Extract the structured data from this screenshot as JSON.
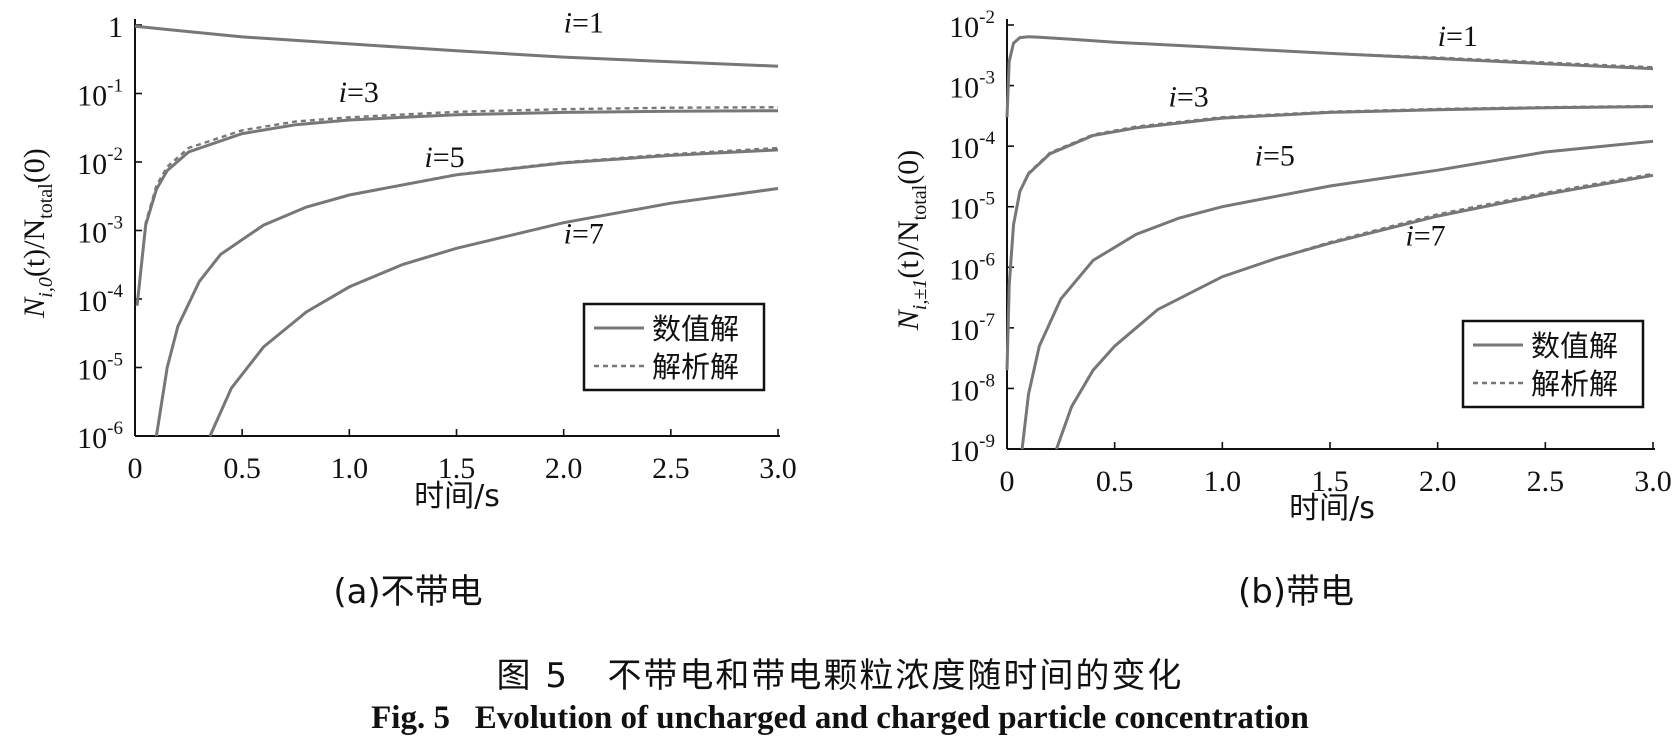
{
  "figure_caption_cn": {
    "label": "图 5",
    "text": "不带电和带电颗粒浓度随时间的变化"
  },
  "figure_caption_en": {
    "label": "Fig. 5",
    "text": "Evolution of uncharged and charged particle concentration"
  },
  "colors": {
    "numerical": "#777777",
    "analytical": "#777777",
    "axis": "#111111"
  },
  "chart_data": [
    {
      "type": "line",
      "panel_caption": "(a)不带电",
      "xlabel": "时间/s",
      "ylabel": {
        "main": "N",
        "sub1": "i,0",
        "mid": "(t)/N",
        "sub2": "total",
        "tail": "(0)"
      },
      "y_scale": "log",
      "xlim": [
        0,
        3.0
      ],
      "ylim": [
        1e-06,
        1
      ],
      "x_ticks": [
        "0",
        "0.5",
        "1.0",
        "1.5",
        "2.0",
        "2.5",
        "3.0"
      ],
      "y_ticks": [
        {
          "base": "1",
          "exp": ""
        },
        {
          "base": "10",
          "exp": "-1"
        },
        {
          "base": "10",
          "exp": "-2"
        },
        {
          "base": "10",
          "exp": "-3"
        },
        {
          "base": "10",
          "exp": "-4"
        },
        {
          "base": "10",
          "exp": "-5"
        },
        {
          "base": "10",
          "exp": "-6"
        }
      ],
      "legend": {
        "position": "bottom-right",
        "entries": [
          "数值解",
          "解析解"
        ]
      },
      "series": [
        {
          "label": "i=1",
          "label_at": [
            2.0,
            0.78
          ],
          "x": [
            0,
            0.25,
            0.5,
            1.0,
            1.5,
            2.0,
            2.5,
            3.0
          ],
          "numerical": [
            0.96,
            0.8,
            0.67,
            0.53,
            0.42,
            0.34,
            0.29,
            0.25
          ],
          "analytical": [
            0.96,
            0.8,
            0.67,
            0.53,
            0.42,
            0.34,
            0.29,
            0.25
          ]
        },
        {
          "label": "i=3",
          "label_at": [
            0.95,
            0.075
          ],
          "x": [
            0.01,
            0.05,
            0.1,
            0.15,
            0.25,
            0.5,
            0.75,
            1.0,
            1.5,
            2.0,
            2.5,
            3.0
          ],
          "numerical": [
            8e-05,
            0.0012,
            0.004,
            0.0075,
            0.014,
            0.026,
            0.035,
            0.041,
            0.049,
            0.053,
            0.055,
            0.056
          ],
          "analytical": [
            8e-05,
            0.0013,
            0.0045,
            0.0085,
            0.016,
            0.029,
            0.039,
            0.045,
            0.054,
            0.059,
            0.062,
            0.063
          ]
        },
        {
          "label": "i=5",
          "label_at": [
            1.35,
            0.0085
          ],
          "x": [
            0.1,
            0.15,
            0.2,
            0.3,
            0.4,
            0.6,
            0.8,
            1.0,
            1.5,
            2.0,
            2.5,
            3.0
          ],
          "numerical": [
            1e-06,
            1e-05,
            4e-05,
            0.00018,
            0.00045,
            0.0012,
            0.0022,
            0.0033,
            0.0065,
            0.0097,
            0.0125,
            0.015
          ],
          "analytical": [
            1e-06,
            1e-05,
            4e-05,
            0.00018,
            0.00045,
            0.0012,
            0.0022,
            0.0033,
            0.0066,
            0.0099,
            0.013,
            0.016
          ]
        },
        {
          "label": "i=7",
          "label_at": [
            2.0,
            0.00065
          ],
          "x": [
            0.35,
            0.45,
            0.6,
            0.8,
            1.0,
            1.25,
            1.5,
            2.0,
            2.5,
            3.0
          ],
          "numerical": [
            1e-06,
            5e-06,
            2e-05,
            6.5e-05,
            0.00015,
            0.00032,
            0.00055,
            0.0013,
            0.0025,
            0.0041
          ],
          "analytical": [
            1e-06,
            5e-06,
            2e-05,
            6.5e-05,
            0.00015,
            0.00032,
            0.00055,
            0.0013,
            0.0025,
            0.0041
          ]
        }
      ]
    },
    {
      "type": "line",
      "panel_caption": "(b)带电",
      "xlabel": "时间/s",
      "ylabel": {
        "main": "N",
        "sub1": "i,±1",
        "mid": "(t)/N",
        "sub2": "total",
        "tail": "(0)"
      },
      "y_scale": "log",
      "xlim": [
        0,
        3.0
      ],
      "ylim": [
        1e-09,
        0.01
      ],
      "x_ticks": [
        "0",
        "0.5",
        "1.0",
        "1.5",
        "2.0",
        "2.5",
        "3.0"
      ],
      "y_ticks": [
        {
          "base": "10",
          "exp": "-2"
        },
        {
          "base": "10",
          "exp": "-3"
        },
        {
          "base": "10",
          "exp": "-4"
        },
        {
          "base": "10",
          "exp": "-5"
        },
        {
          "base": "10",
          "exp": "-6"
        },
        {
          "base": "10",
          "exp": "-7"
        },
        {
          "base": "10",
          "exp": "-8"
        },
        {
          "base": "10",
          "exp": "-9"
        }
      ],
      "legend": {
        "position": "bottom-right",
        "entries": [
          "数值解",
          "解析解"
        ]
      },
      "series": [
        {
          "label": "i=1",
          "label_at": [
            2.0,
            0.0045
          ],
          "x": [
            0,
            0.01,
            0.03,
            0.06,
            0.1,
            0.15,
            0.3,
            0.5,
            1.0,
            1.5,
            2.0,
            2.5,
            3.0
          ],
          "numerical": [
            0.0003,
            0.0025,
            0.005,
            0.0062,
            0.0064,
            0.0063,
            0.0058,
            0.0052,
            0.0042,
            0.0034,
            0.0028,
            0.0023,
            0.0019
          ],
          "analytical": [
            0.0003,
            0.0025,
            0.005,
            0.0062,
            0.0064,
            0.0063,
            0.0058,
            0.0052,
            0.0042,
            0.0034,
            0.0029,
            0.0024,
            0.002
          ]
        },
        {
          "label": "i=3",
          "label_at": [
            0.75,
            0.00045
          ],
          "x": [
            0.0,
            0.01,
            0.03,
            0.06,
            0.1,
            0.2,
            0.4,
            0.6,
            1.0,
            1.5,
            2.0,
            2.5,
            3.0
          ],
          "numerical": [
            2e-08,
            5e-07,
            5e-06,
            1.8e-05,
            3.5e-05,
            7.5e-05,
            0.00015,
            0.0002,
            0.00029,
            0.00036,
            0.0004,
            0.00043,
            0.00045
          ],
          "analytical": [
            2e-08,
            5e-07,
            5e-06,
            1.8e-05,
            3.6e-05,
            7.8e-05,
            0.000155,
            0.00021,
            0.0003,
            0.00037,
            0.00041,
            0.00044,
            0.00046
          ]
        },
        {
          "label": "i=5",
          "label_at": [
            1.15,
            4.8e-05
          ],
          "x": [
            0.07,
            0.1,
            0.15,
            0.25,
            0.4,
            0.6,
            0.8,
            1.0,
            1.5,
            2.0,
            2.5,
            3.0
          ],
          "numerical": [
            1e-09,
            8e-09,
            5e-08,
            3e-07,
            1.3e-06,
            3.5e-06,
            6.5e-06,
            1e-05,
            2.2e-05,
            4e-05,
            8e-05,
            0.00012
          ],
          "analytical": [
            1e-09,
            8e-09,
            5e-08,
            3e-07,
            1.3e-06,
            3.5e-06,
            6.5e-06,
            1e-05,
            2.2e-05,
            4e-05,
            8e-05,
            0.00012
          ]
        },
        {
          "label": "i=7",
          "label_at": [
            1.85,
            2.3e-06
          ],
          "x": [
            0.23,
            0.3,
            0.4,
            0.5,
            0.7,
            1.0,
            1.25,
            1.5,
            2.0,
            2.5,
            3.0
          ],
          "numerical": [
            1e-09,
            5e-09,
            2e-08,
            5e-08,
            2e-07,
            7e-07,
            1.4e-06,
            2.5e-06,
            7e-06,
            1.6e-05,
            3.3e-05
          ],
          "analytical": [
            1e-09,
            5e-09,
            2e-08,
            5e-08,
            2e-07,
            7e-07,
            1.4e-06,
            2.6e-06,
            7.5e-06,
            1.7e-05,
            3.5e-05
          ]
        }
      ]
    }
  ]
}
